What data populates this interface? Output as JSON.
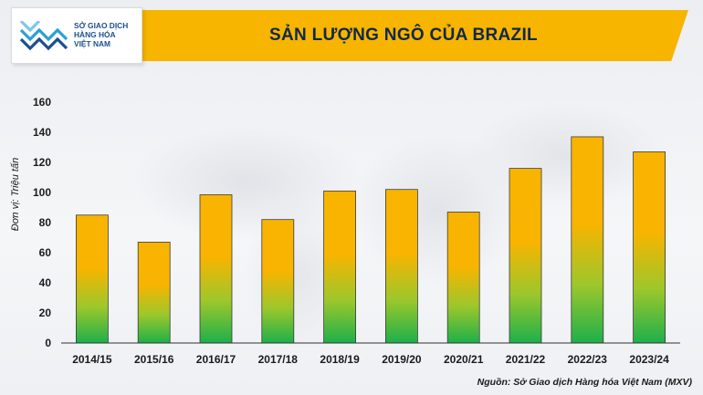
{
  "header": {
    "title": "SẢN LƯỢNG NGÔ CỦA BRAZIL",
    "banner_color": "#f7b500",
    "logo": {
      "icon": "mxv-chevron-logo-icon",
      "lines": [
        "SỞ GIAO DỊCH",
        "HÀNG HÓA",
        "VIỆT NAM"
      ],
      "color": "#1c4f8f"
    }
  },
  "chart_data": {
    "type": "bar",
    "title": "SẢN LƯỢNG NGÔ CỦA BRAZIL",
    "ylabel": "Đơn vị: Triệu tấn",
    "xlabel": "",
    "categories": [
      "2014/15",
      "2015/16",
      "2016/17",
      "2017/18",
      "2018/19",
      "2019/20",
      "2020/21",
      "2021/22",
      "2022/23",
      "2023/24"
    ],
    "values": [
      85,
      67,
      98.5,
      82,
      101,
      102,
      87,
      116,
      137,
      127
    ],
    "ylim": [
      0,
      160
    ],
    "yticks": [
      0,
      20,
      40,
      60,
      80,
      100,
      120,
      140,
      160
    ],
    "grid": false,
    "bar_colors": {
      "top": "#f8b400",
      "bottom": "#1db04b"
    }
  },
  "footer": {
    "source": "Nguồn: Sở Giao dịch Hàng hóa Việt Nam (MXV)"
  }
}
